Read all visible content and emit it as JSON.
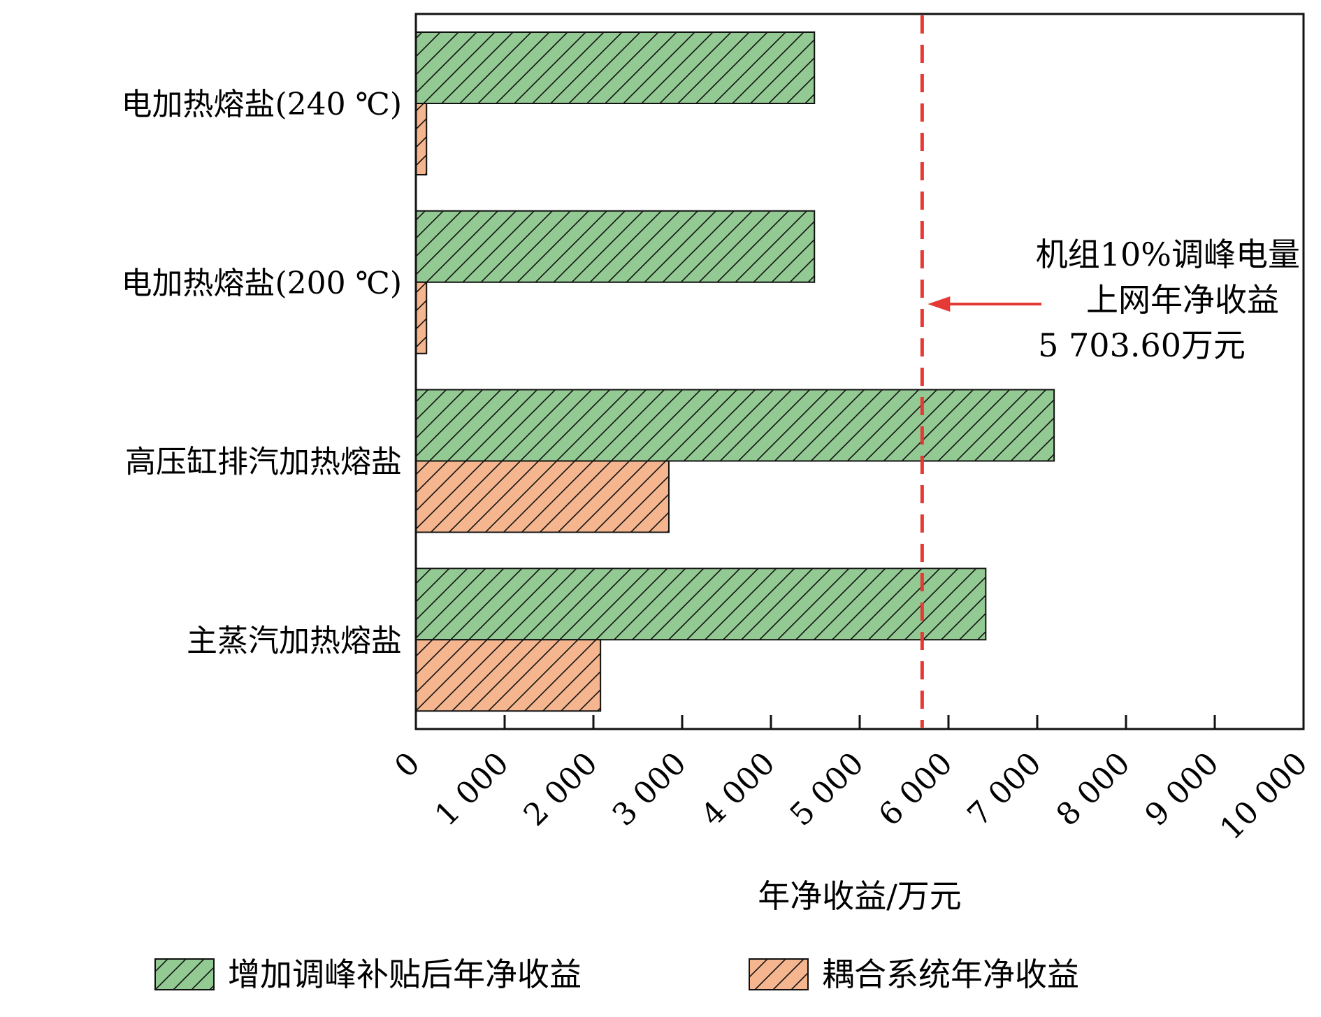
{
  "chart_data": {
    "type": "bar",
    "orientation": "horizontal",
    "categories": [
      "电加热熔盐(240 ℃)",
      "电加热熔盐(200 ℃)",
      "高压缸排汽加热熔盐",
      "主蒸汽加热熔盐"
    ],
    "series": [
      {
        "name": "增加调峰补贴后年净收益",
        "values": [
          4490,
          4490,
          7190,
          6420
        ],
        "color": "#93c993",
        "pattern": "hatch"
      },
      {
        "name": "耦合系统年净收益",
        "values": [
          120,
          120,
          2850,
          2080
        ],
        "color": "#f5b58f",
        "pattern": "hatch"
      }
    ],
    "xlabel": "年净收益/万元",
    "ylabel": "",
    "xlim": [
      0,
      10000
    ],
    "xticks": [
      0,
      1000,
      2000,
      3000,
      4000,
      5000,
      6000,
      7000,
      8000,
      9000,
      10000
    ],
    "xtick_labels": [
      "0",
      "1 000",
      "2 000",
      "3 000",
      "4 000",
      "5 000",
      "6 000",
      "7 000",
      "8 000",
      "9 000",
      "10 000"
    ],
    "grid": false,
    "legend_position": "bottom",
    "reference_line": {
      "value": 5703.6,
      "color": "#e53935",
      "style": "dashed"
    },
    "annotation": [
      "机组10%调峰电量",
      "上网年净收益",
      "5 703.60万元"
    ]
  }
}
